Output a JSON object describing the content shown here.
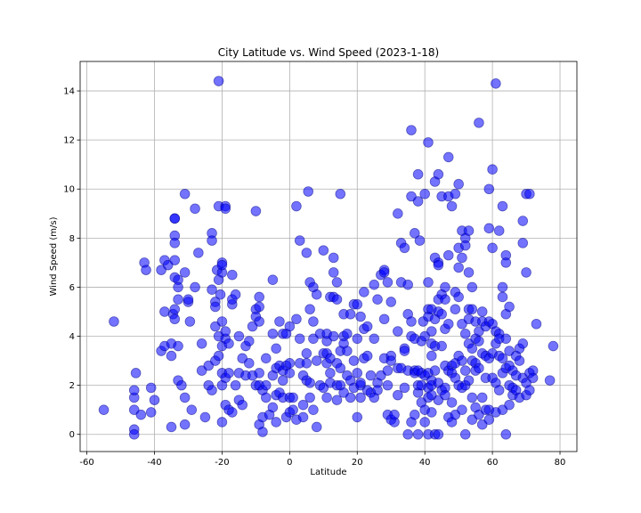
{
  "chart_data": {
    "type": "scatter",
    "title": "City Latitude vs. Wind Speed (2023-1-18)",
    "xlabel": "Latitude",
    "ylabel": "Wind Speed (m/s)",
    "xlim": [
      -62,
      85
    ],
    "ylim": [
      -0.7,
      15.2
    ],
    "x_ticks": [
      -60,
      -40,
      -20,
      0,
      20,
      40,
      60,
      80
    ],
    "y_ticks": [
      0,
      2,
      4,
      6,
      8,
      10,
      12,
      14
    ],
    "grid": true,
    "marker_color": "#0000ff",
    "marker_edge_color": "#000080",
    "marker_alpha": 0.55,
    "points": [
      [
        -55,
        1.0
      ],
      [
        -52,
        4.6
      ],
      [
        -46,
        0.2
      ],
      [
        -46,
        0.0
      ],
      [
        -46,
        1.0
      ],
      [
        -46,
        1.5
      ],
      [
        -46,
        1.8
      ],
      [
        -45.5,
        2.5
      ],
      [
        -44,
        0.8
      ],
      [
        -43,
        7.0
      ],
      [
        -42.5,
        6.7
      ],
      [
        -41,
        0.9
      ],
      [
        -41,
        1.9
      ],
      [
        -40,
        1.4
      ],
      [
        -38,
        3.4
      ],
      [
        -38,
        6.7
      ],
      [
        -37,
        3.6
      ],
      [
        -37,
        7.1
      ],
      [
        -37,
        5.0
      ],
      [
        -36,
        6.9
      ],
      [
        -35,
        3.2
      ],
      [
        -35,
        0.3
      ],
      [
        -35,
        3.7
      ],
      [
        -34,
        8.8
      ],
      [
        -34.5,
        4.9
      ],
      [
        -34,
        4.7
      ],
      [
        -34,
        5.1
      ],
      [
        -34,
        6.4
      ],
      [
        -34,
        7.1
      ],
      [
        -33,
        6.3
      ],
      [
        -33,
        5.5
      ],
      [
        -34,
        8.8
      ],
      [
        -34,
        8.1
      ],
      [
        -34,
        7.8
      ],
      [
        -33,
        2.2
      ],
      [
        -33,
        3.6
      ],
      [
        -33,
        6.0
      ],
      [
        -32,
        2.0
      ],
      [
        -31,
        9.8
      ],
      [
        -31,
        6.6
      ],
      [
        -31,
        0.4
      ],
      [
        -31,
        1.5
      ],
      [
        -30,
        5.4
      ],
      [
        -30,
        5.5
      ],
      [
        -29.5,
        4.6
      ],
      [
        -29,
        1.0
      ],
      [
        -28,
        9.2
      ],
      [
        -28,
        6.0
      ],
      [
        -27,
        7.4
      ],
      [
        -26,
        2.6
      ],
      [
        -26,
        3.7
      ],
      [
        -25,
        0.7
      ],
      [
        -24,
        2.0
      ],
      [
        -24,
        2.8
      ],
      [
        -23,
        8.2
      ],
      [
        -23,
        5.9
      ],
      [
        -23,
        7.9
      ],
      [
        -23,
        1.8
      ],
      [
        -22,
        3.0
      ],
      [
        -22,
        5.4
      ],
      [
        -22,
        4.4
      ],
      [
        -22,
        5.2
      ],
      [
        -21.5,
        6.7
      ],
      [
        -21,
        4.0
      ],
      [
        -21,
        6.3
      ],
      [
        -21,
        3.2
      ],
      [
        -21,
        9.3
      ],
      [
        -20.5,
        5.7
      ],
      [
        -20,
        6.6
      ],
      [
        -20,
        3.6
      ],
      [
        -20,
        7.0
      ],
      [
        -20,
        2.0
      ],
      [
        -20,
        0.5
      ],
      [
        -20,
        2.5
      ],
      [
        -20,
        4.6
      ],
      [
        -20,
        6.9
      ],
      [
        -19,
        9.3
      ],
      [
        -19,
        9.2
      ],
      [
        -19,
        3.9
      ],
      [
        -19,
        1.2
      ],
      [
        -19,
        2.3
      ],
      [
        -19,
        4.2
      ],
      [
        -18,
        1.0
      ],
      [
        -18,
        2.5
      ],
      [
        -18,
        3.7
      ],
      [
        -17,
        6.5
      ],
      [
        -17,
        5.3
      ],
      [
        -17,
        5.5
      ],
      [
        -17,
        0.9
      ],
      [
        -16,
        5.7
      ],
      [
        -16,
        2.0
      ],
      [
        -15,
        2.5
      ],
      [
        -15,
        1.4
      ],
      [
        -15,
        4.0
      ],
      [
        -14,
        3.1
      ],
      [
        -14,
        1.2
      ],
      [
        -13,
        2.4
      ],
      [
        -13,
        3.6
      ],
      [
        -12,
        3.8
      ],
      [
        -12,
        2.9
      ],
      [
        -11,
        4.4
      ],
      [
        -11,
        2.4
      ],
      [
        -10,
        2.0
      ],
      [
        -10,
        9.1
      ],
      [
        -10,
        5.1
      ],
      [
        -10,
        4.8
      ],
      [
        -9,
        4.6
      ],
      [
        -9,
        2.5
      ],
      [
        -9,
        0.4
      ],
      [
        -9,
        2.0
      ],
      [
        -9,
        5.2
      ],
      [
        -9,
        5.6
      ],
      [
        -8,
        1.8
      ],
      [
        -8,
        0.1
      ],
      [
        -8,
        0.7
      ],
      [
        -7,
        3.1
      ],
      [
        -7,
        2.0
      ],
      [
        -7,
        1.5
      ],
      [
        -6,
        0.8
      ],
      [
        -5,
        4.1
      ],
      [
        -5,
        6.3
      ],
      [
        -5,
        1.1
      ],
      [
        -5,
        2.4
      ],
      [
        -4,
        1.6
      ],
      [
        -4,
        2.7
      ],
      [
        -4,
        0.5
      ],
      [
        -4,
        3.5
      ],
      [
        -3,
        4.6
      ],
      [
        -3,
        2.8
      ],
      [
        -3,
        1.7
      ],
      [
        -2,
        2.6
      ],
      [
        -2,
        2.2
      ],
      [
        -2,
        4.1
      ],
      [
        -2,
        1.5
      ],
      [
        -1,
        4.1
      ],
      [
        -1,
        0.7
      ],
      [
        -1,
        2.8
      ],
      [
        0,
        0.9
      ],
      [
        0,
        1.5
      ],
      [
        0,
        2.5
      ],
      [
        0,
        2.9
      ],
      [
        0,
        4.4
      ],
      [
        1,
        1.5
      ],
      [
        1,
        1.0
      ],
      [
        2,
        4.7
      ],
      [
        2,
        9.3
      ],
      [
        2,
        0.6
      ],
      [
        3,
        3.9
      ],
      [
        3,
        7.9
      ],
      [
        3,
        2.9
      ],
      [
        4,
        1.2
      ],
      [
        4,
        0.7
      ],
      [
        4,
        2.4
      ],
      [
        5,
        7.4
      ],
      [
        5,
        3.3
      ],
      [
        5,
        2.9
      ],
      [
        5,
        2.2
      ],
      [
        5.5,
        9.9
      ],
      [
        6,
        6.2
      ],
      [
        6,
        2.1
      ],
      [
        6,
        5.1
      ],
      [
        6,
        1.5
      ],
      [
        7,
        3.9
      ],
      [
        7,
        1.0
      ],
      [
        7,
        6.0
      ],
      [
        7,
        4.6
      ],
      [
        8,
        5.7
      ],
      [
        8,
        0.3
      ],
      [
        8,
        3.0
      ],
      [
        9,
        2.0
      ],
      [
        9,
        4.1
      ],
      [
        10,
        7.5
      ],
      [
        10,
        3.3
      ],
      [
        10,
        1.9
      ],
      [
        11,
        1.5
      ],
      [
        11,
        2.9
      ],
      [
        11,
        3.3
      ],
      [
        11,
        3.8
      ],
      [
        11,
        4.1
      ],
      [
        12,
        5.6
      ],
      [
        12,
        2.1
      ],
      [
        12,
        2.5
      ],
      [
        12,
        3.1
      ],
      [
        13,
        4.0
      ],
      [
        13,
        7.2
      ],
      [
        13,
        6.6
      ],
      [
        13,
        5.6
      ],
      [
        14,
        6.2
      ],
      [
        14,
        2.0
      ],
      [
        14,
        2.9
      ],
      [
        14,
        5.5
      ],
      [
        14,
        1.4
      ],
      [
        15,
        9.8
      ],
      [
        15,
        3.4
      ],
      [
        15,
        2.0
      ],
      [
        15,
        2.7
      ],
      [
        16,
        1.7
      ],
      [
        16,
        4.0
      ],
      [
        16,
        3.7
      ],
      [
        16,
        4.9
      ],
      [
        17,
        3.4
      ],
      [
        17,
        2.4
      ],
      [
        17,
        4.1
      ],
      [
        18,
        1.5
      ],
      [
        18,
        2.2
      ],
      [
        18,
        4.9
      ],
      [
        19,
        1.9
      ],
      [
        19,
        5.3
      ],
      [
        19,
        3.0
      ],
      [
        20,
        0.7
      ],
      [
        20,
        2.5
      ],
      [
        20,
        3.9
      ],
      [
        20,
        5.3
      ],
      [
        21,
        1.5
      ],
      [
        21,
        2.0
      ],
      [
        21,
        2.1
      ],
      [
        21,
        4.8
      ],
      [
        22,
        3.1
      ],
      [
        22,
        4.3
      ],
      [
        22,
        5.8
      ],
      [
        23,
        3.2
      ],
      [
        23,
        1.8
      ],
      [
        23,
        4.4
      ],
      [
        24,
        2.4
      ],
      [
        24,
        1.7
      ],
      [
        25,
        1.5
      ],
      [
        25,
        6.1
      ],
      [
        25,
        3.9
      ],
      [
        26,
        2.1
      ],
      [
        26,
        5.5
      ],
      [
        26,
        1.8
      ],
      [
        27,
        6.5
      ],
      [
        27,
        2.4
      ],
      [
        28,
        3.1
      ],
      [
        28,
        4.7
      ],
      [
        28,
        6.7
      ],
      [
        28,
        6.6
      ],
      [
        29,
        6.2
      ],
      [
        29,
        2.6
      ],
      [
        29,
        0.8
      ],
      [
        29,
        2.0
      ],
      [
        30,
        5.4
      ],
      [
        30,
        3.2
      ],
      [
        30,
        0.6
      ],
      [
        30,
        3.0
      ],
      [
        31,
        0.5
      ],
      [
        31,
        0.8
      ],
      [
        32,
        1.6
      ],
      [
        32,
        2.7
      ],
      [
        32,
        4.2
      ],
      [
        32,
        9.0
      ],
      [
        33,
        7.8
      ],
      [
        33,
        6.2
      ],
      [
        33,
        2.7
      ],
      [
        34,
        1.9
      ],
      [
        34,
        3.5
      ],
      [
        34,
        7.6
      ],
      [
        34,
        3.4
      ],
      [
        35,
        2.6
      ],
      [
        35,
        4.9
      ],
      [
        35,
        6.1
      ],
      [
        35,
        0.0
      ],
      [
        36,
        12.4
      ],
      [
        36,
        9.7
      ],
      [
        36,
        4.6
      ],
      [
        36,
        4.0
      ],
      [
        36,
        0.5
      ],
      [
        37,
        8.2
      ],
      [
        37,
        2.6
      ],
      [
        37,
        3.9
      ],
      [
        37,
        0.8
      ],
      [
        37,
        2.5
      ],
      [
        38,
        2.6
      ],
      [
        38,
        10.6
      ],
      [
        38,
        9.5
      ],
      [
        38,
        1.7
      ],
      [
        38,
        0.0
      ],
      [
        38,
        2.0
      ],
      [
        38.5,
        7.9
      ],
      [
        39,
        2.5
      ],
      [
        39,
        3.8
      ],
      [
        39,
        2.0
      ],
      [
        39,
        1.3
      ],
      [
        39.5,
        4.6
      ],
      [
        40,
        2.4
      ],
      [
        40,
        0.5
      ],
      [
        40,
        1.0
      ],
      [
        40,
        4.0
      ],
      [
        40,
        9.8
      ],
      [
        41,
        11.9
      ],
      [
        41,
        5.1
      ],
      [
        41,
        6.2
      ],
      [
        41,
        4.8
      ],
      [
        41,
        1.9
      ],
      [
        41,
        1.5
      ],
      [
        41,
        0.0
      ],
      [
        41,
        2.5
      ],
      [
        42,
        2.2
      ],
      [
        42,
        2.0
      ],
      [
        42,
        3.7
      ],
      [
        42,
        5.1
      ],
      [
        42,
        4.2
      ],
      [
        42,
        1.6
      ],
      [
        42,
        3.2
      ],
      [
        42,
        0.9
      ],
      [
        43,
        10.3
      ],
      [
        43,
        7.2
      ],
      [
        43,
        4.7
      ],
      [
        43,
        3.6
      ],
      [
        43,
        2.6
      ],
      [
        43,
        0.0
      ],
      [
        44,
        10.6
      ],
      [
        44,
        7.0
      ],
      [
        44,
        6.9
      ],
      [
        44,
        5.5
      ],
      [
        44,
        5.0
      ],
      [
        44,
        2.1
      ],
      [
        44,
        1.4
      ],
      [
        44,
        0.0
      ],
      [
        45,
        9.7
      ],
      [
        45,
        5.7
      ],
      [
        45,
        4.9
      ],
      [
        45,
        3.6
      ],
      [
        45,
        1.8
      ],
      [
        46,
        6.0
      ],
      [
        46,
        5.5
      ],
      [
        46,
        4.3
      ],
      [
        46,
        2.8
      ],
      [
        46,
        1.9
      ],
      [
        46,
        1.6
      ],
      [
        47,
        11.3
      ],
      [
        47,
        9.7
      ],
      [
        47,
        7.3
      ],
      [
        47,
        4.5
      ],
      [
        47,
        2.6
      ],
      [
        47,
        0.7
      ],
      [
        48,
        9.3
      ],
      [
        48,
        2.8
      ],
      [
        48,
        2.5
      ],
      [
        48,
        1.3
      ],
      [
        48,
        0.5
      ],
      [
        49,
        9.8
      ],
      [
        49,
        5.8
      ],
      [
        49,
        5.1
      ],
      [
        49,
        2.9
      ],
      [
        49,
        2.3
      ],
      [
        49,
        0.8
      ],
      [
        50,
        10.2
      ],
      [
        50,
        7.6
      ],
      [
        50,
        6.8
      ],
      [
        50,
        5.6
      ],
      [
        50,
        3.2
      ],
      [
        50,
        2.0
      ],
      [
        51,
        8.3
      ],
      [
        51,
        7.2
      ],
      [
        51,
        4.5
      ],
      [
        51,
        3.0
      ],
      [
        51,
        1.9
      ],
      [
        51,
        1.0
      ],
      [
        52,
        8.0
      ],
      [
        52,
        7.7
      ],
      [
        52,
        4.1
      ],
      [
        52,
        2.6
      ],
      [
        52,
        2.0
      ],
      [
        52,
        0.0
      ],
      [
        53,
        8.3
      ],
      [
        53,
        6.6
      ],
      [
        53,
        5.1
      ],
      [
        53,
        4.7
      ],
      [
        53,
        3.7
      ],
      [
        53,
        2.2
      ],
      [
        54,
        6.0
      ],
      [
        54,
        5.1
      ],
      [
        54,
        3.5
      ],
      [
        54,
        3.0
      ],
      [
        54,
        1.5
      ],
      [
        54,
        0.6
      ],
      [
        55,
        4.6
      ],
      [
        55,
        3.9
      ],
      [
        55,
        2.9
      ],
      [
        55,
        2.6
      ],
      [
        55,
        1.1
      ],
      [
        56,
        12.7
      ],
      [
        56,
        4.2
      ],
      [
        56,
        3.8
      ],
      [
        56,
        2.7
      ],
      [
        56,
        0.8
      ],
      [
        57,
        5.0
      ],
      [
        57,
        4.6
      ],
      [
        57,
        3.3
      ],
      [
        57,
        1.5
      ],
      [
        57,
        0.4
      ],
      [
        58,
        4.4
      ],
      [
        58,
        3.2
      ],
      [
        58,
        2.3
      ],
      [
        58,
        1.0
      ],
      [
        59,
        10.0
      ],
      [
        59,
        8.4
      ],
      [
        59,
        4.6
      ],
      [
        59,
        3.1
      ],
      [
        59,
        1.0
      ],
      [
        59,
        0.6
      ],
      [
        60,
        10.8
      ],
      [
        60,
        7.6
      ],
      [
        60,
        4.5
      ],
      [
        60,
        3.3
      ],
      [
        60,
        2.3
      ],
      [
        61,
        14.3
      ],
      [
        61,
        4.2
      ],
      [
        61,
        3.7
      ],
      [
        61,
        2.1
      ],
      [
        61,
        0.9
      ],
      [
        62,
        8.3
      ],
      [
        62,
        4.1
      ],
      [
        62,
        3.9
      ],
      [
        62,
        3.2
      ],
      [
        62,
        1.8
      ],
      [
        63,
        9.3
      ],
      [
        63,
        6.0
      ],
      [
        63,
        5.6
      ],
      [
        63,
        3.1
      ],
      [
        63,
        2.5
      ],
      [
        63,
        1.0
      ],
      [
        64,
        7.3
      ],
      [
        64,
        7.0
      ],
      [
        64,
        4.9
      ],
      [
        64,
        3.9
      ],
      [
        64,
        2.7
      ],
      [
        64,
        0.0
      ],
      [
        65,
        5.2
      ],
      [
        65,
        3.4
      ],
      [
        65,
        2.8
      ],
      [
        65,
        2.0
      ],
      [
        65,
        1.2
      ],
      [
        66,
        2.6
      ],
      [
        66,
        1.9
      ],
      [
        66,
        1.6
      ],
      [
        67,
        3.2
      ],
      [
        67,
        2.4
      ],
      [
        67,
        1.8
      ],
      [
        68,
        3.5
      ],
      [
        68,
        3.0
      ],
      [
        68,
        1.5
      ],
      [
        69,
        8.7
      ],
      [
        69,
        7.8
      ],
      [
        69,
        3.7
      ],
      [
        69,
        2.3
      ],
      [
        70,
        9.8
      ],
      [
        70,
        6.6
      ],
      [
        70,
        2.1
      ],
      [
        70,
        1.6
      ],
      [
        71,
        9.8
      ],
      [
        71,
        2.5
      ],
      [
        71,
        1.8
      ],
      [
        72,
        2.6
      ],
      [
        72,
        2.3
      ],
      [
        73,
        4.5
      ],
      [
        77,
        2.2
      ],
      [
        78,
        3.6
      ],
      [
        -21,
        14.4
      ]
    ]
  }
}
